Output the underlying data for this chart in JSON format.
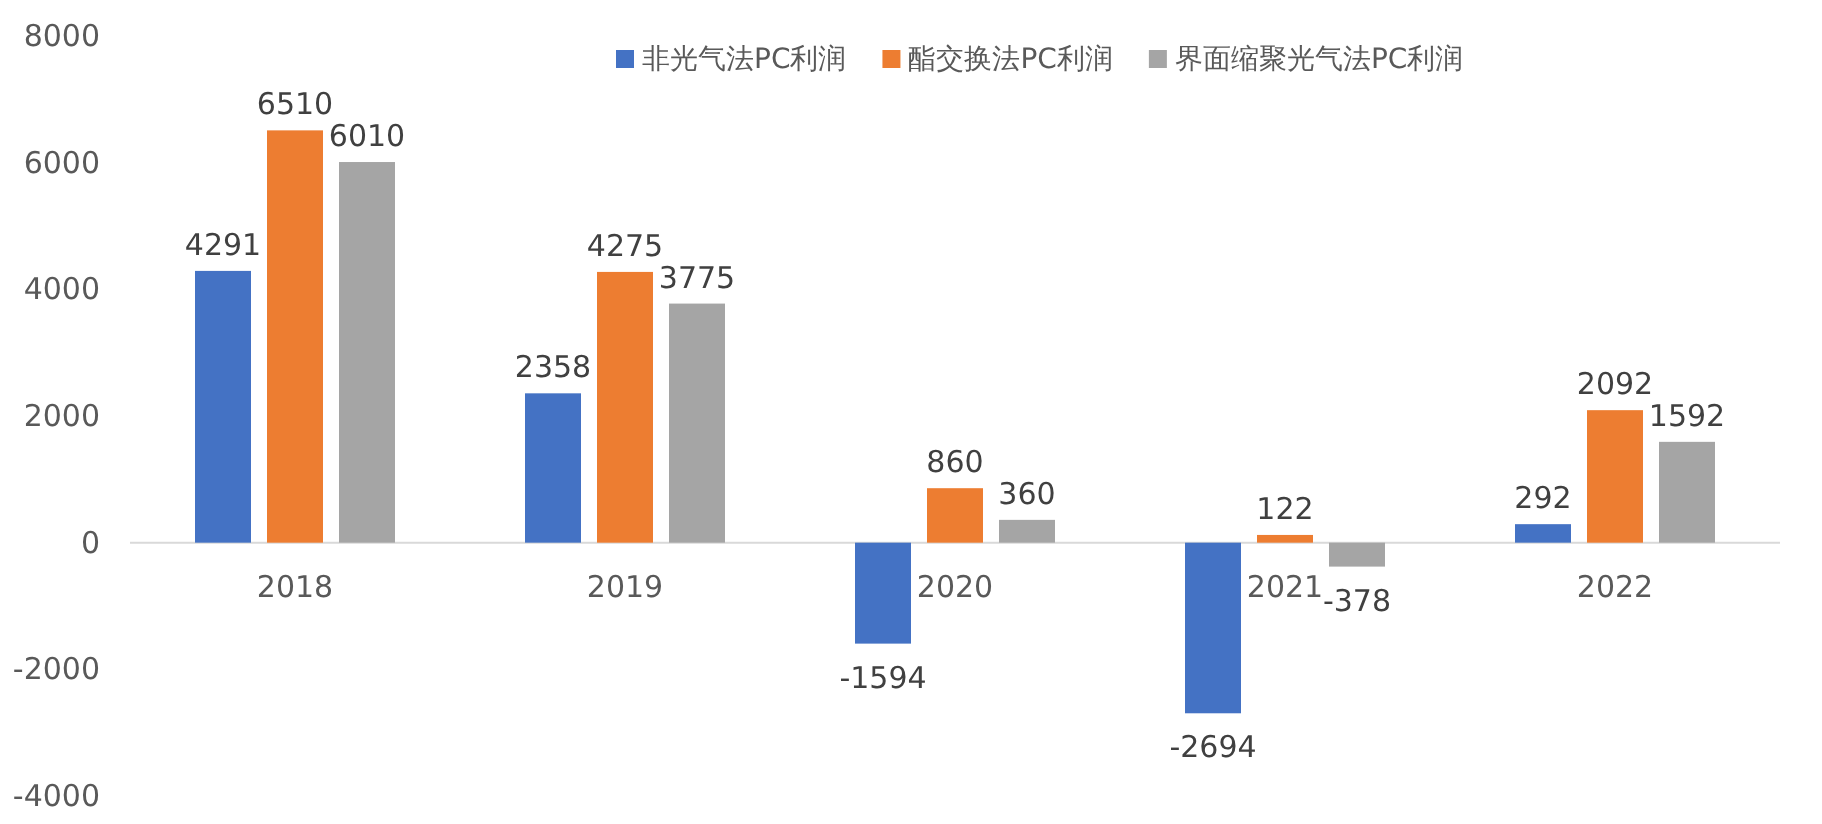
{
  "chart_data": {
    "type": "bar",
    "categories": [
      "2018",
      "2019",
      "2020",
      "2021",
      "2022"
    ],
    "series": [
      {
        "name": "非光气法PC利润",
        "color": "#4472c4",
        "values": [
          4291,
          2358,
          -1594,
          -2694,
          292
        ]
      },
      {
        "name": "酯交换法PC利润",
        "color": "#ed7d31",
        "values": [
          6510,
          4275,
          860,
          122,
          2092
        ]
      },
      {
        "name": "界面缩聚光气法PC利润",
        "color": "#a5a5a5",
        "values": [
          6010,
          3775,
          360,
          -378,
          1592
        ]
      }
    ],
    "ylim": [
      -4000,
      8000
    ],
    "yticks": [
      -4000,
      -2000,
      0,
      2000,
      4000,
      6000,
      8000
    ],
    "data_labels": true,
    "legend": "top right",
    "grid": false
  }
}
